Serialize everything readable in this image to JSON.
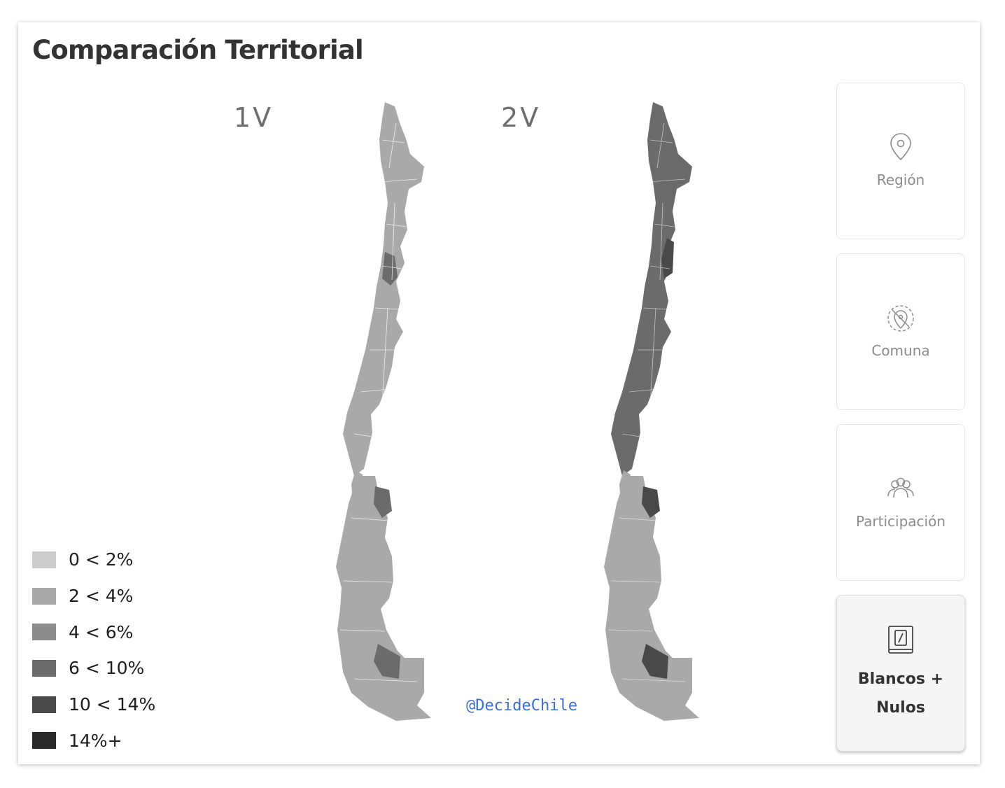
{
  "header": {
    "title": "Comparación Territorial"
  },
  "maps": [
    {
      "id": "1v",
      "label": "1V",
      "mainland_class": "2 < 4%",
      "south_class": "2 < 4%",
      "accent_class": "6 < 10%"
    },
    {
      "id": "2v",
      "label": "2V",
      "mainland_class": "6 < 10%",
      "south_class": "2 < 4%",
      "accent_class": "10 < 14%"
    }
  ],
  "watermark": "@DecideChile",
  "legend": {
    "items": [
      {
        "label": "0 < 2%",
        "color": "#cccccc"
      },
      {
        "label": "2 < 4%",
        "color": "#a9a9a9"
      },
      {
        "label": "4 < 6%",
        "color": "#8c8c8c"
      },
      {
        "label": "6 < 10%",
        "color": "#6b6b6b"
      },
      {
        "label": "10 < 14%",
        "color": "#494949"
      },
      {
        "label": "14%+",
        "color": "#2a2a2a"
      }
    ]
  },
  "sidebar": {
    "buttons": [
      {
        "label": "Región",
        "icon": "map-pin-icon",
        "active": false
      },
      {
        "label": "Comuna",
        "icon": "location-cancel-icon",
        "active": false
      },
      {
        "label": "Participación",
        "icon": "people-group-icon",
        "active": false
      },
      {
        "label": "Blancos + Nulos",
        "icon": "ballot-icon",
        "active": true
      }
    ]
  }
}
